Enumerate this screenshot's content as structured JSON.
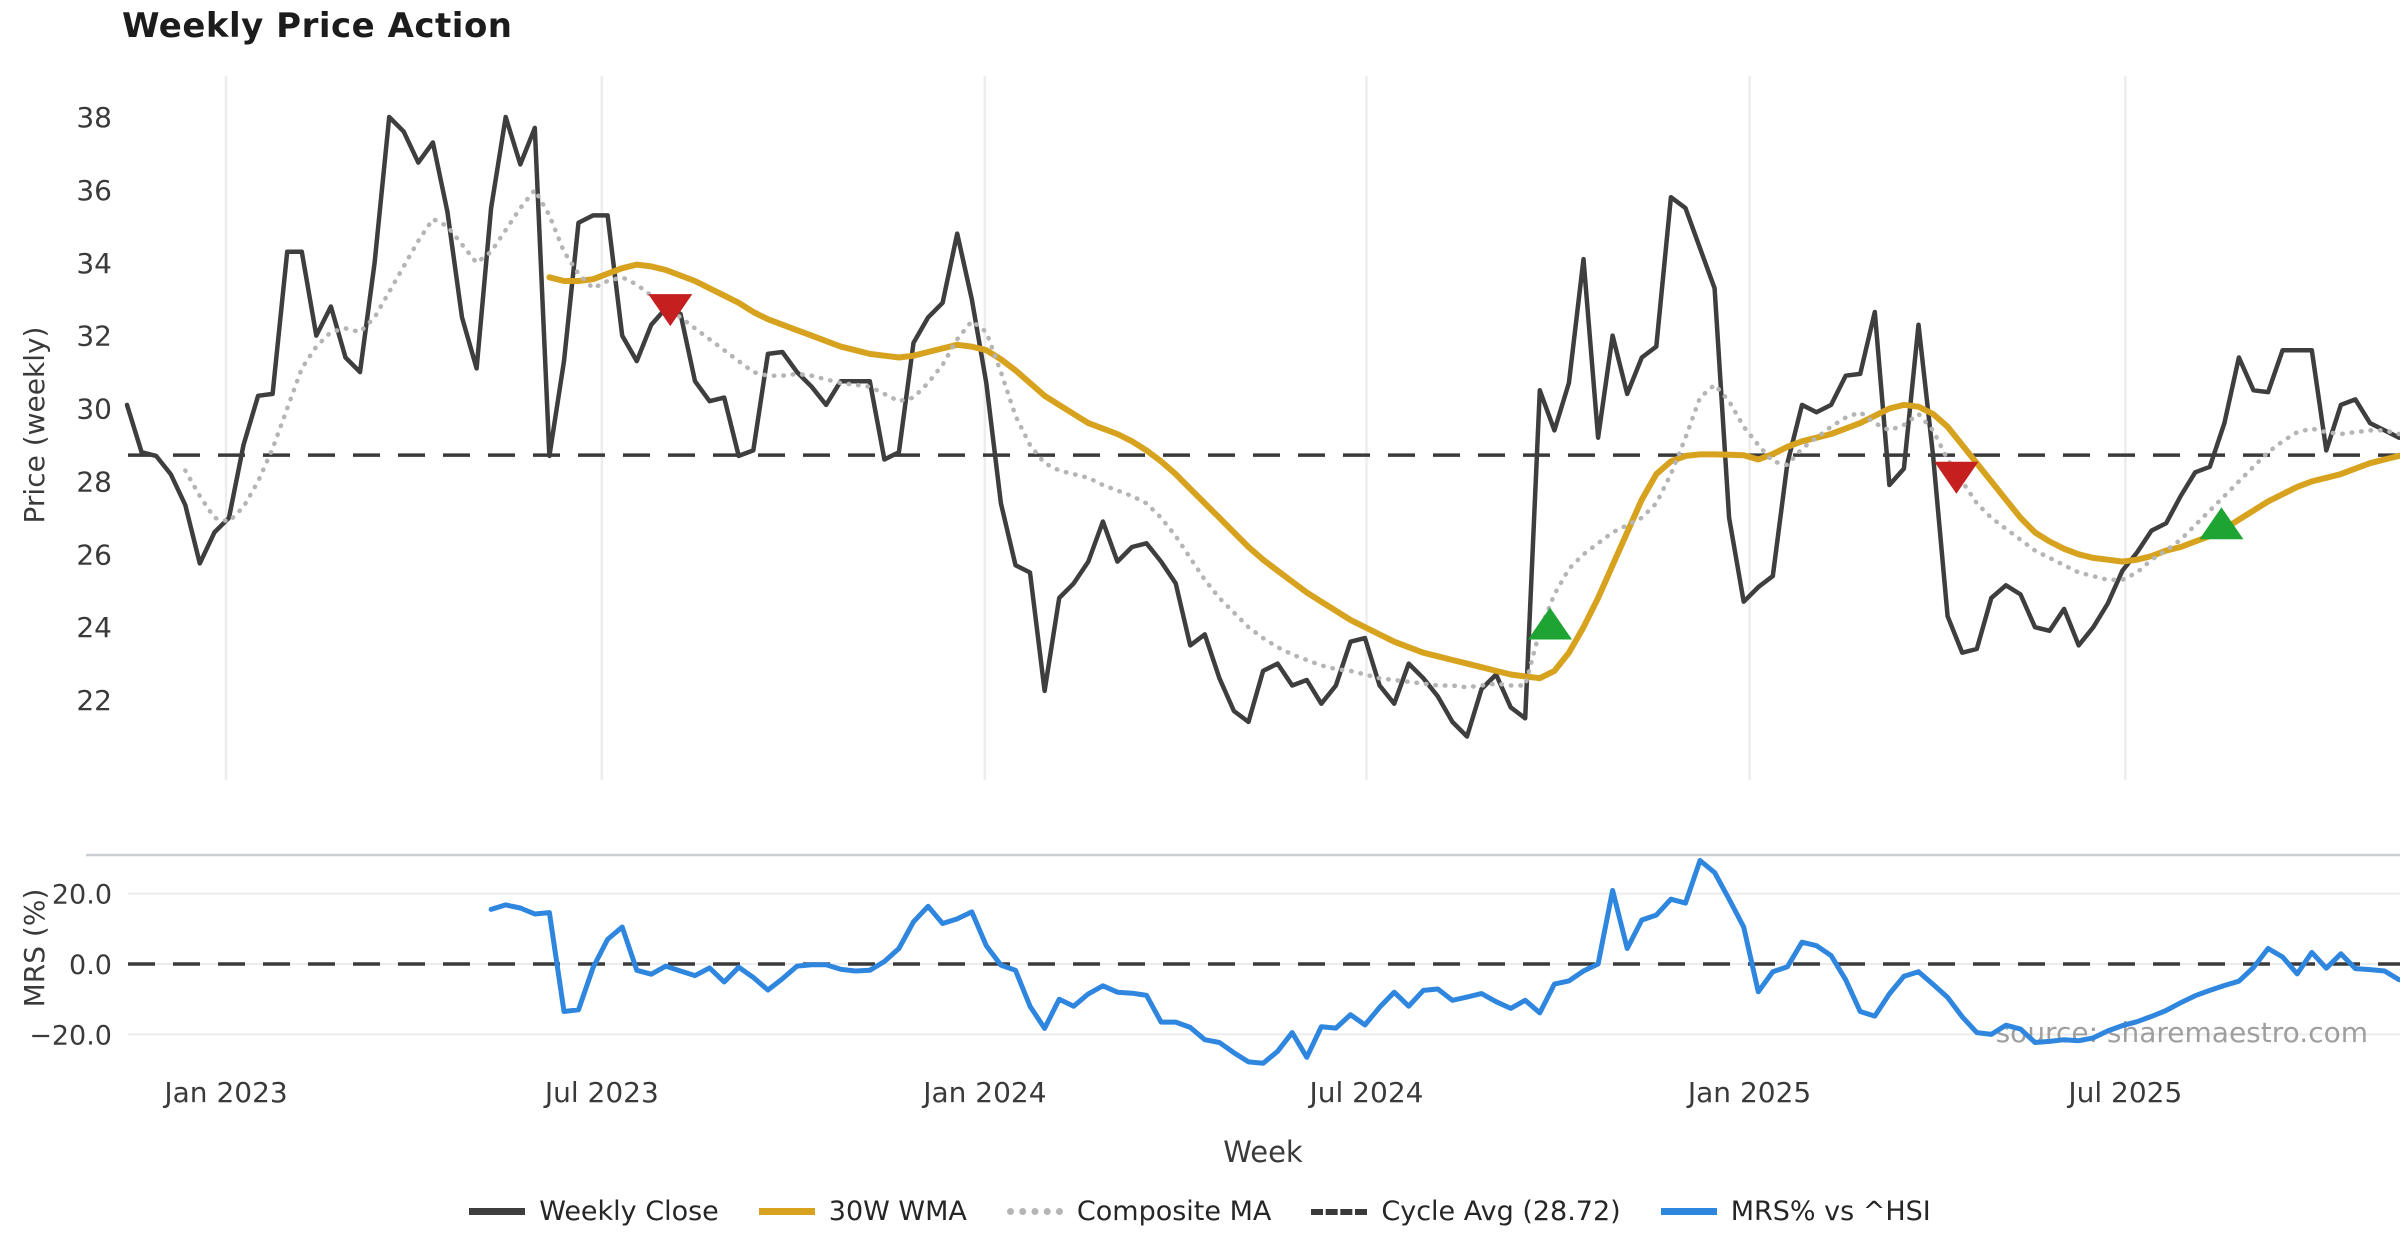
{
  "title": "Weekly Price Action",
  "watermark": "source: sharemaestro.com",
  "colors": {
    "close": "#3e3e3e",
    "wma": "#d7a21e",
    "composite": "#b5b5b5",
    "dashed": "#3a3a3a",
    "mrs": "#2e86de",
    "buy": "#1da432",
    "sell": "#c51f1f",
    "grid": "#ededed",
    "panel_border": "#cbced3",
    "tick_text": "#3a3a3a",
    "watermark_text": "#8f8f8f"
  },
  "chart_data": {
    "type": "line",
    "title": "Weekly Price Action",
    "xlabel": "Week",
    "x_ticks": [
      {
        "label": "Jan 2023",
        "week": 6.8
      },
      {
        "label": "Jul 2023",
        "week": 32.6
      },
      {
        "label": "Jan 2024",
        "week": 58.9
      },
      {
        "label": "Jul 2024",
        "week": 85.1
      },
      {
        "label": "Jan 2025",
        "week": 111.4
      },
      {
        "label": "Jul 2025",
        "week": 137.2
      }
    ],
    "price_panel": {
      "ylabel": "Price (weekly)",
      "yticks": [
        22,
        24,
        26,
        28,
        30,
        32,
        34,
        36,
        38
      ],
      "ylim": [
        20.5,
        39.1
      ],
      "cycle_avg": 28.72
    },
    "mrs_panel": {
      "ylabel": "MRS (%)",
      "yticks": [
        {
          "label": "20.0",
          "value": 20
        },
        {
          "label": "0.0",
          "value": 0
        },
        {
          "label": "−20.0",
          "value": -20
        }
      ],
      "zero_line": 0
    },
    "series": [
      {
        "name": "Weekly Close",
        "panel": "price",
        "style": "solid",
        "color_key": "close",
        "start_week": 0,
        "values": [
          30.1,
          28.8,
          28.7,
          28.2,
          27.35,
          25.75,
          26.6,
          27.0,
          29.0,
          30.35,
          30.4,
          34.3,
          34.3,
          32.0,
          32.8,
          31.4,
          31.0,
          34.0,
          38.0,
          37.6,
          36.75,
          37.3,
          35.4,
          32.5,
          31.1,
          35.5,
          38.0,
          36.7,
          37.7,
          28.7,
          31.3,
          35.1,
          35.3,
          35.3,
          32.0,
          31.3,
          32.3,
          32.75,
          32.6,
          30.75,
          30.2,
          30.3,
          28.7,
          28.85,
          31.5,
          31.55,
          31.0,
          30.6,
          30.1,
          30.75,
          30.75,
          30.75,
          28.6,
          28.8,
          31.8,
          32.5,
          32.9,
          34.8,
          33.0,
          30.7,
          27.4,
          25.7,
          25.5,
          22.25,
          24.8,
          25.2,
          25.8,
          26.9,
          25.8,
          26.2,
          26.3,
          25.8,
          25.2,
          23.5,
          23.8,
          22.6,
          21.7,
          21.4,
          22.8,
          23.0,
          22.4,
          22.55,
          21.9,
          22.4,
          23.6,
          23.7,
          22.4,
          21.9,
          23.0,
          22.6,
          22.1,
          21.4,
          21.0,
          22.3,
          22.7,
          21.8,
          21.5,
          30.5,
          29.4,
          30.7,
          34.1,
          29.2,
          32.0,
          30.4,
          31.4,
          31.7,
          35.8,
          35.5,
          34.4,
          33.3,
          27.0,
          24.7,
          25.1,
          25.4,
          28.5,
          30.1,
          29.9,
          30.1,
          30.9,
          30.95,
          32.65,
          27.9,
          28.35,
          32.3,
          28.7,
          24.3,
          23.3,
          23.4,
          24.8,
          25.15,
          24.9,
          24.0,
          23.9,
          24.5,
          23.5,
          24.0,
          24.65,
          25.55,
          26.05,
          26.65,
          26.85,
          27.6,
          28.25,
          28.4,
          29.6,
          31.4,
          30.5,
          30.45,
          31.6,
          31.6,
          31.6,
          28.85,
          30.1,
          30.25,
          29.6,
          29.4,
          29.2
        ]
      },
      {
        "name": "30W WMA",
        "panel": "price",
        "style": "solid",
        "color_key": "wma",
        "start_week": 29,
        "values": [
          33.6,
          33.5,
          33.5,
          33.55,
          33.7,
          33.85,
          33.95,
          33.9,
          33.8,
          33.65,
          33.5,
          33.3,
          33.1,
          32.9,
          32.65,
          32.45,
          32.3,
          32.15,
          32.0,
          31.85,
          31.7,
          31.6,
          31.5,
          31.45,
          31.4,
          31.45,
          31.55,
          31.65,
          31.75,
          31.7,
          31.6,
          31.35,
          31.05,
          30.7,
          30.35,
          30.1,
          29.85,
          29.6,
          29.45,
          29.3,
          29.1,
          28.85,
          28.55,
          28.2,
          27.8,
          27.4,
          27.0,
          26.6,
          26.2,
          25.85,
          25.55,
          25.25,
          24.95,
          24.7,
          24.45,
          24.2,
          24.0,
          23.8,
          23.6,
          23.45,
          23.3,
          23.2,
          23.1,
          23.0,
          22.9,
          22.8,
          22.7,
          22.65,
          22.6,
          22.8,
          23.3,
          24.0,
          24.8,
          25.7,
          26.6,
          27.5,
          28.2,
          28.55,
          28.7,
          28.74,
          28.74,
          28.73,
          28.72,
          28.6,
          28.75,
          28.95,
          29.1,
          29.2,
          29.3,
          29.45,
          29.6,
          29.8,
          30.0,
          30.1,
          30.05,
          29.85,
          29.5,
          29.0,
          28.5,
          28.0,
          27.5,
          27.0,
          26.6,
          26.35,
          26.15,
          26.0,
          25.9,
          25.85,
          25.8,
          25.85,
          25.95,
          26.1,
          26.2,
          26.35,
          26.5,
          26.7,
          26.95,
          27.2,
          27.45,
          27.65,
          27.85,
          28.0,
          28.1,
          28.2,
          28.35,
          28.5,
          28.6,
          28.7
        ]
      },
      {
        "name": "Composite MA",
        "panel": "price",
        "style": "dotted",
        "color_key": "composite",
        "start_week": 4,
        "values": [
          28.3,
          27.6,
          27.0,
          26.9,
          27.3,
          28.0,
          28.9,
          30.0,
          31.1,
          31.7,
          32.1,
          32.2,
          32.1,
          32.5,
          33.2,
          33.9,
          34.6,
          35.2,
          35.0,
          34.5,
          34.0,
          34.3,
          34.9,
          35.5,
          36.0,
          35.3,
          34.3,
          33.7,
          33.3,
          33.5,
          33.6,
          33.4,
          33.1,
          32.8,
          32.5,
          32.2,
          31.9,
          31.6,
          31.3,
          31.0,
          30.9,
          30.9,
          30.95,
          30.9,
          30.8,
          30.7,
          30.65,
          30.6,
          30.4,
          30.2,
          30.3,
          30.7,
          31.2,
          31.9,
          32.4,
          32.1,
          31.0,
          29.8,
          29.0,
          28.5,
          28.3,
          28.2,
          28.1,
          27.9,
          27.75,
          27.6,
          27.4,
          27.0,
          26.5,
          25.9,
          25.3,
          24.8,
          24.4,
          24.0,
          23.7,
          23.45,
          23.25,
          23.1,
          22.95,
          22.85,
          22.8,
          22.7,
          22.6,
          22.55,
          22.5,
          22.45,
          22.4,
          22.4,
          22.35,
          22.4,
          22.45,
          22.4,
          22.4,
          23.9,
          24.9,
          25.6,
          26.0,
          26.3,
          26.6,
          26.8,
          27.0,
          27.4,
          28.2,
          29.2,
          30.3,
          30.65,
          30.2,
          29.5,
          29.0,
          28.55,
          28.45,
          28.9,
          29.2,
          29.5,
          29.75,
          29.9,
          29.6,
          29.4,
          29.55,
          29.85,
          29.4,
          28.6,
          28.0,
          27.4,
          27.0,
          26.7,
          26.4,
          26.1,
          25.9,
          25.7,
          25.5,
          25.4,
          25.3,
          25.3,
          25.5,
          25.85,
          26.1,
          26.4,
          26.8,
          27.2,
          27.6,
          28.0,
          28.4,
          28.8,
          29.1,
          29.35,
          29.45,
          29.35,
          29.3,
          29.35,
          29.4,
          29.4,
          29.3
        ]
      },
      {
        "name": "Cycle Avg (28.72)",
        "panel": "price",
        "style": "dashed",
        "color_key": "dashed",
        "value": 28.72
      },
      {
        "name": "MRS% vs ^HSI",
        "panel": "mrs",
        "style": "solid",
        "color_key": "mrs",
        "start_week": 25,
        "values": [
          15.5,
          16.8,
          15.9,
          14.2,
          14.6,
          -13.5,
          -13.0,
          -1.0,
          7.0,
          10.5,
          -1.8,
          -2.9,
          -0.6,
          -2.0,
          -3.3,
          -1.1,
          -5.1,
          -0.9,
          -3.8,
          -7.4,
          -4.2,
          -0.6,
          -0.2,
          -0.2,
          -1.5,
          -2.0,
          -1.8,
          0.7,
          4.4,
          12.0,
          16.4,
          11.5,
          12.8,
          14.8,
          5.2,
          -0.3,
          -1.8,
          -12.0,
          -18.3,
          -10.0,
          -12.0,
          -8.5,
          -6.2,
          -8.0,
          -8.3,
          -8.9,
          -16.5,
          -16.5,
          -18.0,
          -21.5,
          -22.3,
          -25.2,
          -27.8,
          -28.2,
          -24.8,
          -19.5,
          -26.5,
          -17.8,
          -18.2,
          -14.4,
          -17.3,
          -12.3,
          -8.0,
          -12.0,
          -7.5,
          -7.1,
          -10.3,
          -9.4,
          -8.4,
          -10.7,
          -12.6,
          -10.3,
          -13.9,
          -5.7,
          -4.8,
          -2.0,
          0.0,
          20.9,
          4.4,
          12.5,
          13.9,
          18.4,
          17.3,
          29.4,
          26.0,
          18.4,
          10.5,
          -7.9,
          -2.2,
          -0.8,
          6.2,
          5.2,
          2.4,
          -4.5,
          -13.5,
          -14.8,
          -8.5,
          -3.5,
          -2.2,
          -5.8,
          -9.5,
          -15.0,
          -19.5,
          -20.0,
          -17.4,
          -18.5,
          -22.3,
          -22.0,
          -21.5,
          -21.8,
          -21.0,
          -19.0,
          -17.5,
          -16.4,
          -14.9,
          -13.2,
          -11.0,
          -9.0,
          -7.5,
          -6.1,
          -4.9,
          -1.0,
          4.4,
          2.0,
          -2.8,
          3.3,
          -1.2,
          2.9,
          -1.3,
          -1.6,
          -2.0,
          -4.5
        ]
      }
    ],
    "markers": [
      {
        "type": "sell",
        "week": 37.3,
        "price": 32.7
      },
      {
        "type": "buy",
        "week": 97.7,
        "price": 24.1
      },
      {
        "type": "sell",
        "week": 125.6,
        "price": 28.1
      },
      {
        "type": "buy",
        "week": 143.8,
        "price": 26.85
      }
    ],
    "legend": [
      {
        "label": "Weekly Close",
        "swatch": "sw-close"
      },
      {
        "label": "30W WMA",
        "swatch": "sw-wma"
      },
      {
        "label": "Composite MA",
        "swatch": "sw-comp"
      },
      {
        "label": "Cycle Avg (28.72)",
        "swatch": "sw-cyc"
      },
      {
        "label": "MRS% vs ^HSI",
        "swatch": "sw-mrs"
      }
    ]
  }
}
